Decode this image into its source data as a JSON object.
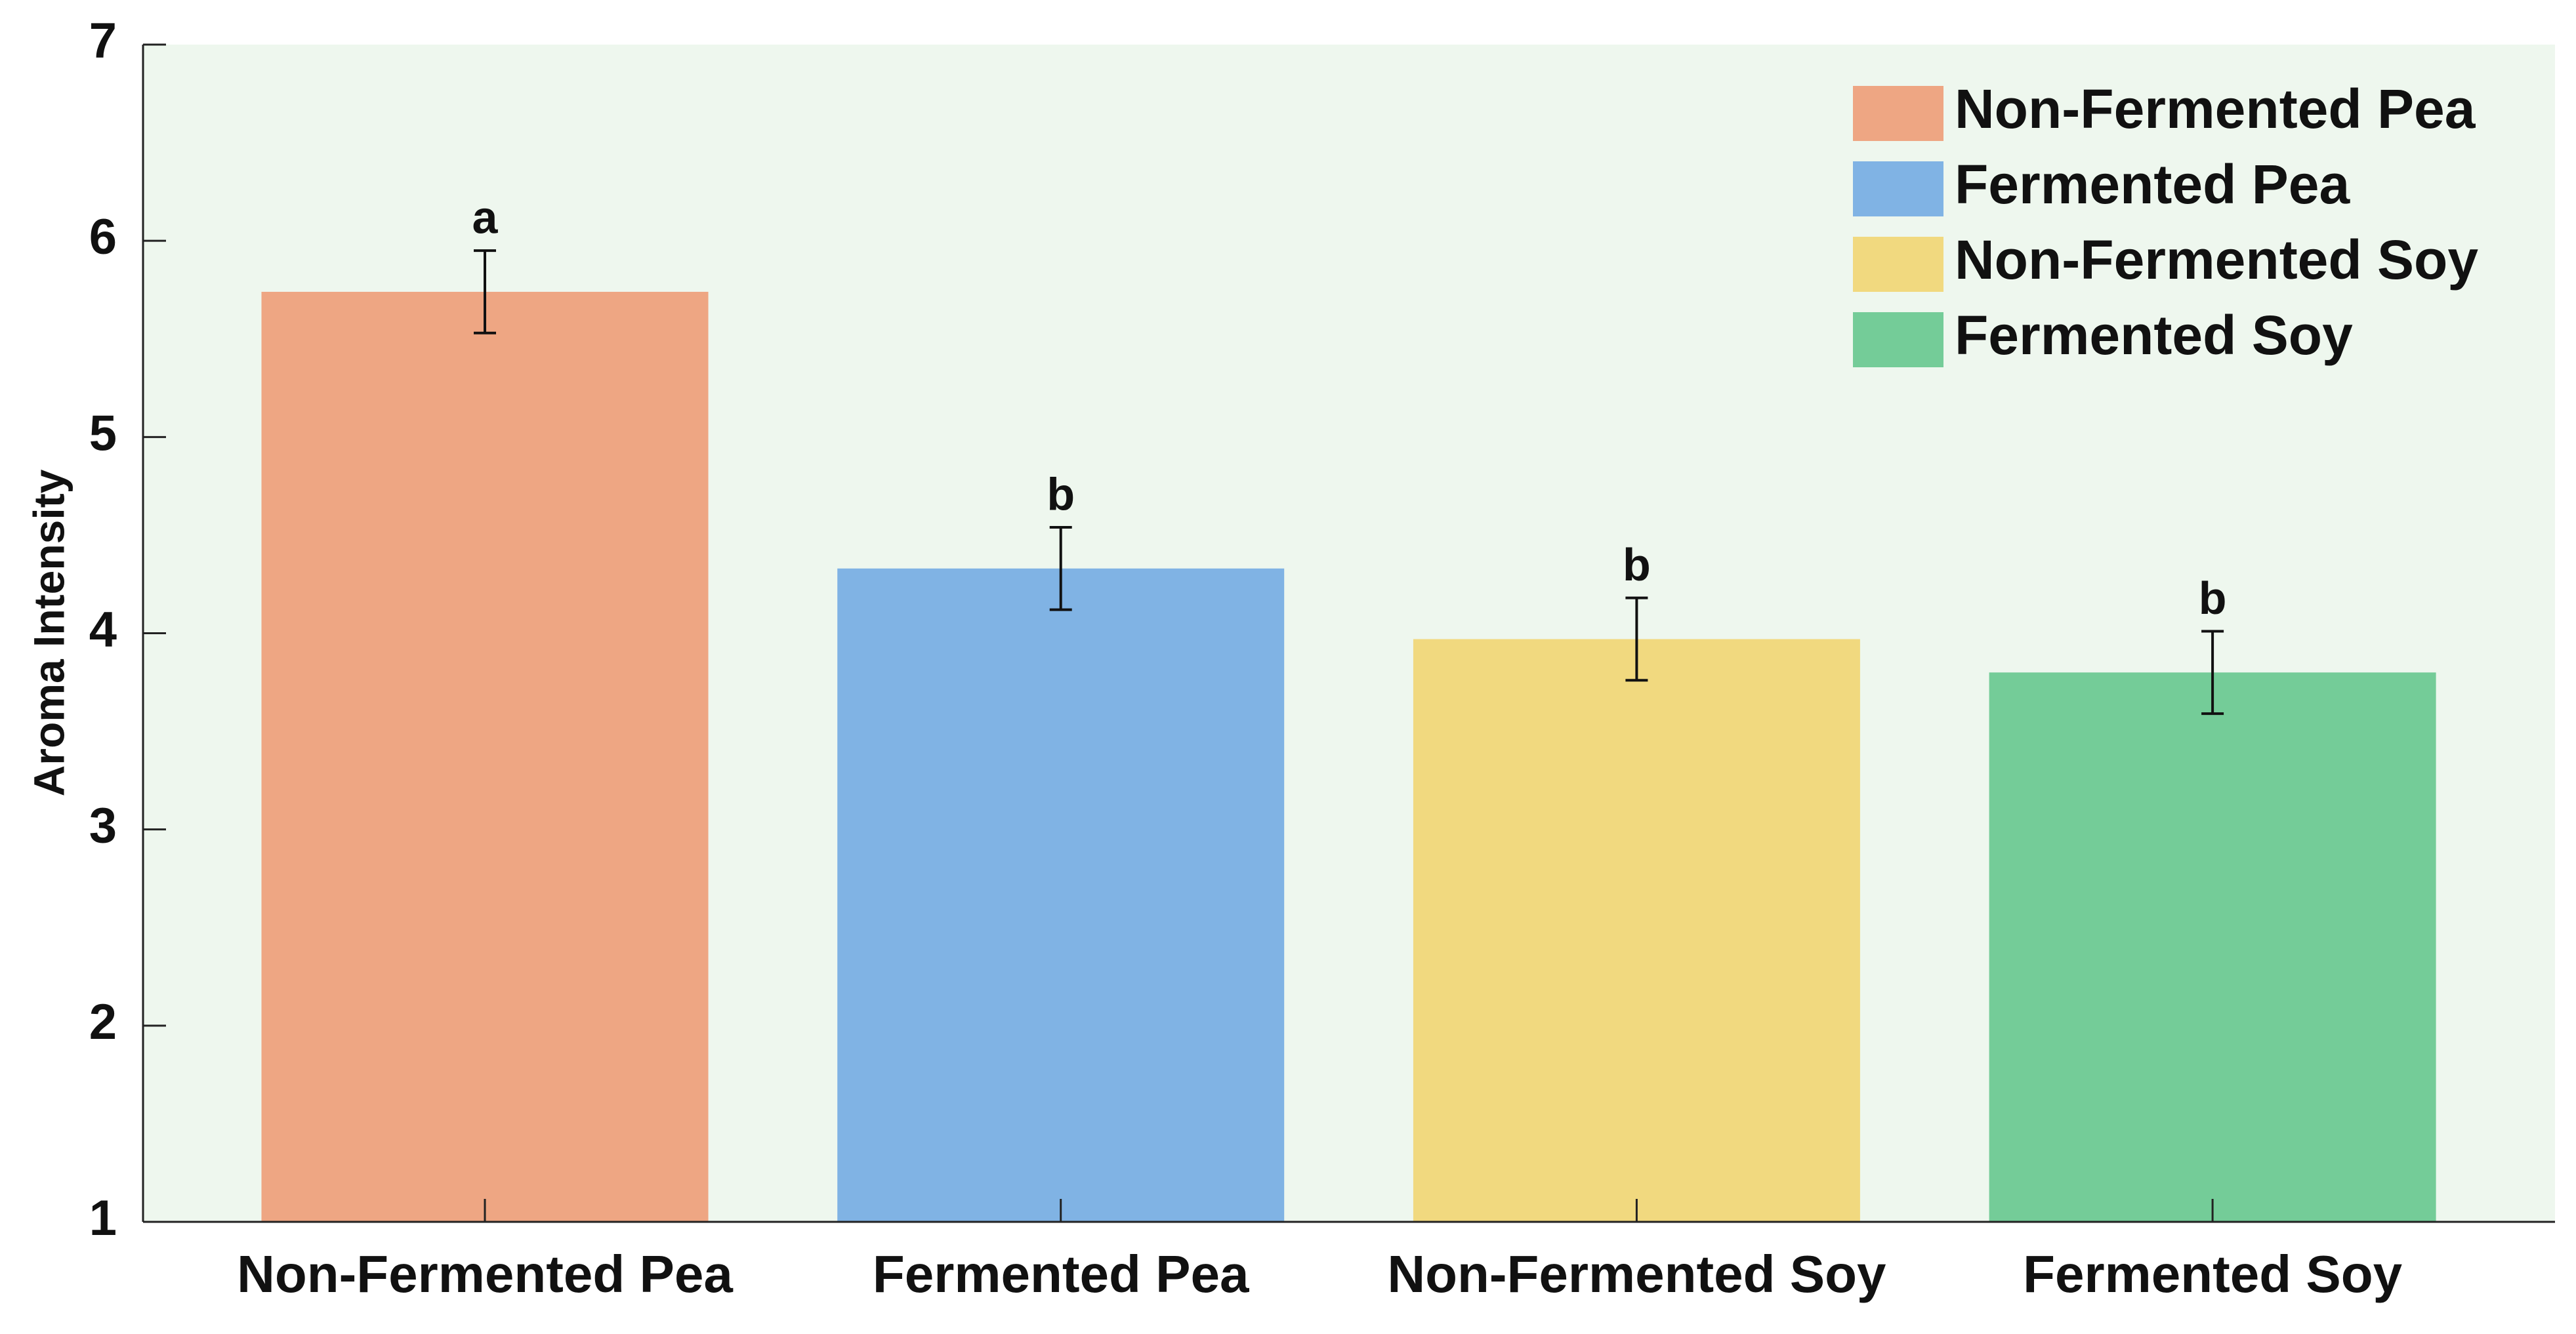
{
  "chart_data": {
    "type": "bar",
    "ylabel": "Aroma Intensity",
    "categories": [
      "Non-Fermented Pea",
      "Fermented Pea",
      "Non-Fermented Soy",
      "Fermented Soy"
    ],
    "values": [
      5.74,
      4.33,
      3.97,
      3.8
    ],
    "errors": [
      0.21,
      0.21,
      0.21,
      0.21
    ],
    "annotations": [
      "a",
      "b",
      "b",
      "b"
    ],
    "colors": [
      "#eea683",
      "#80b3e4",
      "#f1d97f",
      "#74cc98"
    ],
    "legend": {
      "labels": [
        "Non-Fermented Pea",
        "Fermented Pea",
        "Non-Fermented Soy",
        "Fermented Soy"
      ],
      "position": "upper right"
    },
    "ylim": [
      1,
      7
    ],
    "yticks": [
      1,
      2,
      3,
      4,
      5,
      6,
      7
    ],
    "background": "#eef7ee"
  }
}
